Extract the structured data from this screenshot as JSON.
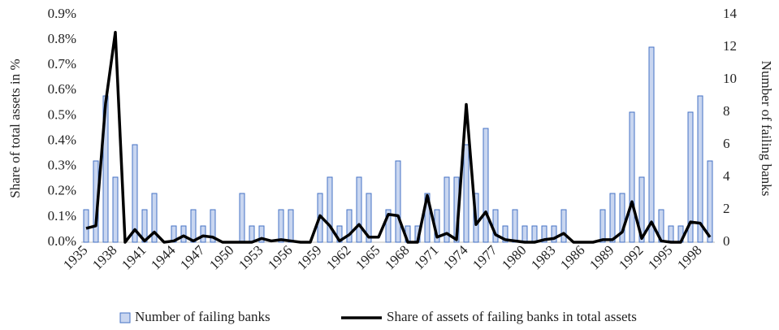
{
  "chart_data": {
    "type": "combo",
    "categories": [
      "1935",
      null,
      null,
      "1938",
      null,
      null,
      "1941",
      null,
      null,
      "1944",
      null,
      null,
      "1947",
      null,
      null,
      "1950",
      null,
      null,
      "1953",
      null,
      null,
      "1956",
      null,
      null,
      "1959",
      null,
      null,
      "1962",
      null,
      null,
      "1965",
      null,
      null,
      "1968",
      null,
      null,
      "1971",
      null,
      null,
      "1974",
      null,
      null,
      "1977",
      null,
      null,
      "1980",
      null,
      null,
      "1983",
      null,
      null,
      "1986",
      null,
      null,
      "1989",
      null,
      null,
      "1992",
      null,
      null,
      "1995",
      null,
      null,
      "1998",
      null
    ],
    "series": [
      {
        "name": "Number of failing banks",
        "type": "bar",
        "axis": "y2",
        "color": "#c9d6f0",
        "edge": "#4472c4",
        "values": [
          2,
          5,
          9,
          4,
          0,
          6,
          2,
          3,
          0,
          1,
          1,
          2,
          1,
          2,
          0,
          0,
          3,
          1,
          1,
          0,
          2,
          2,
          0,
          0,
          3,
          4,
          1,
          2,
          4,
          3,
          0,
          2,
          5,
          1,
          1,
          3,
          2,
          4,
          4,
          6,
          3,
          7,
          2,
          1,
          2,
          1,
          1,
          1,
          1,
          2,
          0,
          0,
          0,
          2,
          3,
          3,
          8,
          4,
          12,
          2,
          1,
          1,
          8,
          9,
          5
        ]
      },
      {
        "name": "Share of assets of failing banks in total assets",
        "type": "line",
        "axis": "y",
        "color": "#000000",
        "values": [
          0.055,
          0.065,
          0.55,
          0.83,
          0,
          0.05,
          0.005,
          0.04,
          0,
          0.005,
          0.025,
          0.005,
          0.025,
          0.02,
          0,
          0,
          0,
          0,
          0.015,
          0.005,
          0.01,
          0.005,
          0,
          0,
          0.105,
          0.065,
          0.005,
          0.03,
          0.07,
          0.02,
          0.02,
          0.11,
          0.105,
          0,
          0,
          0.185,
          0.02,
          0.035,
          0.01,
          0.545,
          0.07,
          0.12,
          0.03,
          0.01,
          0.005,
          0,
          0,
          0.01,
          0.015,
          0.035,
          0,
          0,
          0,
          0.01,
          0.01,
          0.04,
          0.16,
          0.015,
          0.08,
          0.005,
          0,
          0,
          0.08,
          0.075,
          0.02
        ]
      }
    ],
    "ylabel": "Share of total assets in %",
    "y2label": "Number of failing banks",
    "ylim": [
      0,
      0.9
    ],
    "yticks": [
      {
        "value": 0,
        "label": "0.0%"
      },
      {
        "value": 0.1,
        "label": "0.1%"
      },
      {
        "value": 0.2,
        "label": "0.2%"
      },
      {
        "value": 0.3,
        "label": "0.3%"
      },
      {
        "value": 0.4,
        "label": "0.4%"
      },
      {
        "value": 0.5,
        "label": "0.5%"
      },
      {
        "value": 0.6,
        "label": "0.6%"
      },
      {
        "value": 0.7,
        "label": "0.7%"
      },
      {
        "value": 0.8,
        "label": "0.8%"
      },
      {
        "value": 0.9,
        "label": "0.9%"
      }
    ],
    "y2lim": [
      0,
      14
    ],
    "y2ticks": [
      0,
      2,
      4,
      6,
      8,
      10,
      12,
      14
    ],
    "legend": "bottom"
  }
}
